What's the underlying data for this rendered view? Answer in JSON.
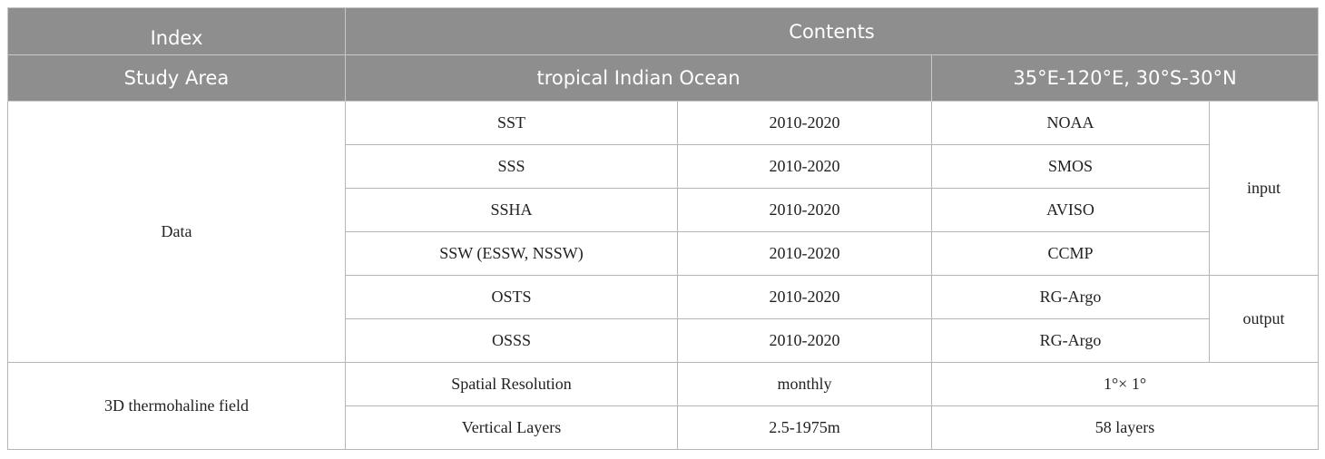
{
  "table": {
    "header": {
      "index": "Index",
      "contents": "Contents",
      "study_area": "Study Area",
      "region": "tropical Indian Ocean",
      "extent": "35°E-120°E, 30°S-30°N"
    },
    "data_label": "Data",
    "input_label": "input",
    "output_label": "output",
    "data_rows": [
      [
        "SST",
        "2010-2020",
        "NOAA"
      ],
      [
        "SSS",
        "2010-2020",
        "SMOS"
      ],
      [
        "SSHA",
        "2010-2020",
        "AVISO"
      ],
      [
        "SSW (ESSW, NSSW)",
        "2010-2020",
        "CCMP"
      ],
      [
        "OSTS",
        "2010-2020",
        "RG-Argo"
      ],
      [
        "OSSS",
        "2010-2020",
        "RG-Argo"
      ]
    ],
    "field_label": "3D thermohaline field",
    "field_rows": [
      [
        "Spatial Resolution",
        "monthly",
        "1°× 1°"
      ],
      [
        "Vertical Layers",
        "2.5-1975m",
        "58 layers"
      ]
    ]
  }
}
